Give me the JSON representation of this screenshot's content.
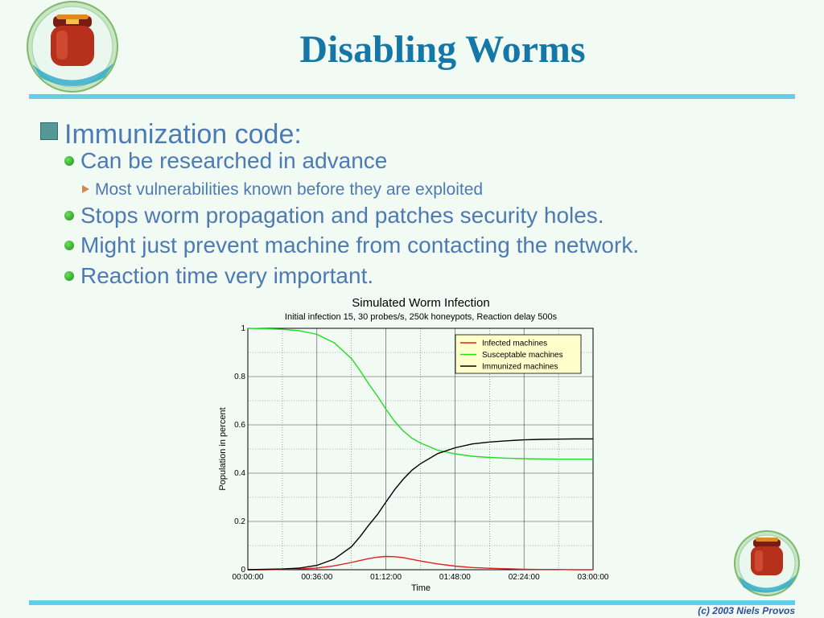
{
  "slide": {
    "title": "Disabling Worms",
    "footer": "(c) 2003 Niels Provos",
    "logo_icon": "honey-jar-logo",
    "bullet_color": "#4e7ab4",
    "title_color": "#1577a7"
  },
  "bullets": {
    "main": "Immunization code:",
    "b1": "Can be researched in advance",
    "b1_sub": "Most vulnerabilities known before they are exploited",
    "b2": "Stops worm propagation and patches security holes.",
    "b3": "Might just prevent machine from contacting the network.",
    "b4": "Reaction time very important."
  },
  "chart_data": {
    "type": "line",
    "title": "Simulated Worm Infection",
    "subtitle": "Initial infection 15, 30 probes/s, 250k honeypots, Reaction delay 500s",
    "xlabel": "Time",
    "ylabel": "Population in percent",
    "xlim": [
      0,
      10800
    ],
    "ylim": [
      0,
      1
    ],
    "x_ticks": [
      0,
      2160,
      4320,
      6480,
      8640,
      10800
    ],
    "x_tick_labels": [
      "00:00:00",
      "00:36:00",
      "01:12:00",
      "01:48:00",
      "02:24:00",
      "03:00:00"
    ],
    "x_minor_ticks": [
      1080,
      3240,
      5400,
      7560,
      9720
    ],
    "y_ticks": [
      0,
      0.2,
      0.4,
      0.6,
      0.8,
      1
    ],
    "y_tick_labels": [
      "0",
      "0.2",
      "0.4",
      "0.6",
      "0.8",
      "1"
    ],
    "y_minor_ticks": [
      0.1,
      0.3,
      0.5,
      0.7,
      0.9
    ],
    "grid": true,
    "legend_position": "top-right",
    "x": [
      0,
      540,
      1080,
      1620,
      2160,
      2700,
      3240,
      3510,
      3780,
      4050,
      4320,
      4590,
      4860,
      5130,
      5400,
      5940,
      6480,
      7020,
      7560,
      8100,
      8640,
      9180,
      9720,
      10260,
      10800
    ],
    "series": [
      {
        "name": "Infected machines",
        "color": "#e02020",
        "values": [
          0.0,
          0.0,
          0.001,
          0.003,
          0.007,
          0.016,
          0.03,
          0.038,
          0.046,
          0.052,
          0.055,
          0.054,
          0.05,
          0.043,
          0.036,
          0.024,
          0.015,
          0.009,
          0.006,
          0.004,
          0.002,
          0.001,
          0.001,
          0.0,
          0.0
        ]
      },
      {
        "name": "Susceptable machines",
        "color": "#22dd22",
        "values": [
          1.0,
          0.998,
          0.996,
          0.99,
          0.975,
          0.94,
          0.875,
          0.825,
          0.77,
          0.72,
          0.665,
          0.615,
          0.575,
          0.545,
          0.525,
          0.495,
          0.48,
          0.47,
          0.465,
          0.462,
          0.46,
          0.459,
          0.458,
          0.458,
          0.458
        ]
      },
      {
        "name": "Immunized machines",
        "color": "#000000",
        "values": [
          0.0,
          0.002,
          0.003,
          0.007,
          0.018,
          0.044,
          0.095,
          0.137,
          0.184,
          0.228,
          0.28,
          0.331,
          0.375,
          0.412,
          0.439,
          0.481,
          0.505,
          0.521,
          0.529,
          0.534,
          0.538,
          0.54,
          0.541,
          0.542,
          0.542
        ]
      }
    ]
  }
}
